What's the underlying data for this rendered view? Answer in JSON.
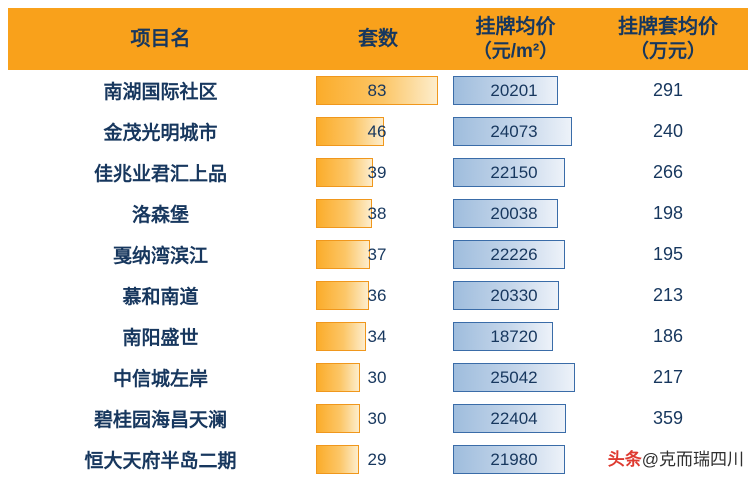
{
  "header": {
    "col_name": "项目名",
    "col_count": "套数",
    "col_price_l1": "挂牌均价",
    "col_price_l2": "（元/m²）",
    "col_unit_l1": "挂牌套均价",
    "col_unit_l2": "（万元）"
  },
  "rows": [
    {
      "name": "南湖国际社区",
      "count": 83,
      "price": 20201,
      "unit_price": 291
    },
    {
      "name": "金茂光明城市",
      "count": 46,
      "price": 24073,
      "unit_price": 240
    },
    {
      "name": "佳兆业君汇上品",
      "count": 39,
      "price": 22150,
      "unit_price": 266
    },
    {
      "name": "洛森堡",
      "count": 38,
      "price": 20038,
      "unit_price": 198
    },
    {
      "name": "戛纳湾滨江",
      "count": 37,
      "price": 22226,
      "unit_price": 195
    },
    {
      "name": "慕和南道",
      "count": 36,
      "price": 20330,
      "unit_price": 213
    },
    {
      "name": "南阳盛世",
      "count": 34,
      "price": 18720,
      "unit_price": 186
    },
    {
      "name": "中信城左岸",
      "count": 30,
      "price": 25042,
      "unit_price": 217
    },
    {
      "name": "碧桂园海昌天澜",
      "count": 30,
      "price": 22404,
      "unit_price": 359
    },
    {
      "name": "恒大天府半岛二期",
      "count": 29,
      "price": 21980,
      "unit_price": null
    }
  ],
  "bars": {
    "count_max": 83,
    "price_max": 25042
  },
  "colors": {
    "header_bg": "#F9A11B",
    "text_navy": "#17375E",
    "orange_bar_border": "#F0971C",
    "orange_bar_fill_start": "#FBAC2A",
    "orange_bar_fill_end": "#FDEDCC",
    "blue_bar_border": "#3A6CA8",
    "blue_bar_fill_start": "#9FBDDD",
    "blue_bar_fill_end": "#EDF2F9",
    "watermark_red": "#DE3A30"
  },
  "watermark": {
    "brand": "头条",
    "account": "@克而瑞四川"
  },
  "chart_data": {
    "type": "table",
    "columns": [
      "项目名",
      "套数",
      "挂牌均价（元/m²）",
      "挂牌套均价（万元）"
    ],
    "rows": [
      [
        "南湖国际社区",
        83,
        20201,
        291
      ],
      [
        "金茂光明城市",
        46,
        24073,
        240
      ],
      [
        "佳兆业君汇上品",
        39,
        22150,
        266
      ],
      [
        "洛森堡",
        38,
        20038,
        198
      ],
      [
        "戛纳湾滨江",
        37,
        22226,
        195
      ],
      [
        "慕和南道",
        36,
        20330,
        213
      ],
      [
        "南阳盛世",
        34,
        18720,
        186
      ],
      [
        "中信城左岸",
        30,
        25042,
        217
      ],
      [
        "碧桂园海昌天澜",
        30,
        22404,
        359
      ],
      [
        "恒大天府半岛二期",
        29,
        21980,
        null
      ]
    ],
    "notes": "套数 column rendered with orange gradient data bars scaled to max 83; 挂牌均价 column rendered with blue gradient data bars (max 25042); last row 挂牌套均价 value obscured by watermark 头条@克而瑞四川"
  }
}
